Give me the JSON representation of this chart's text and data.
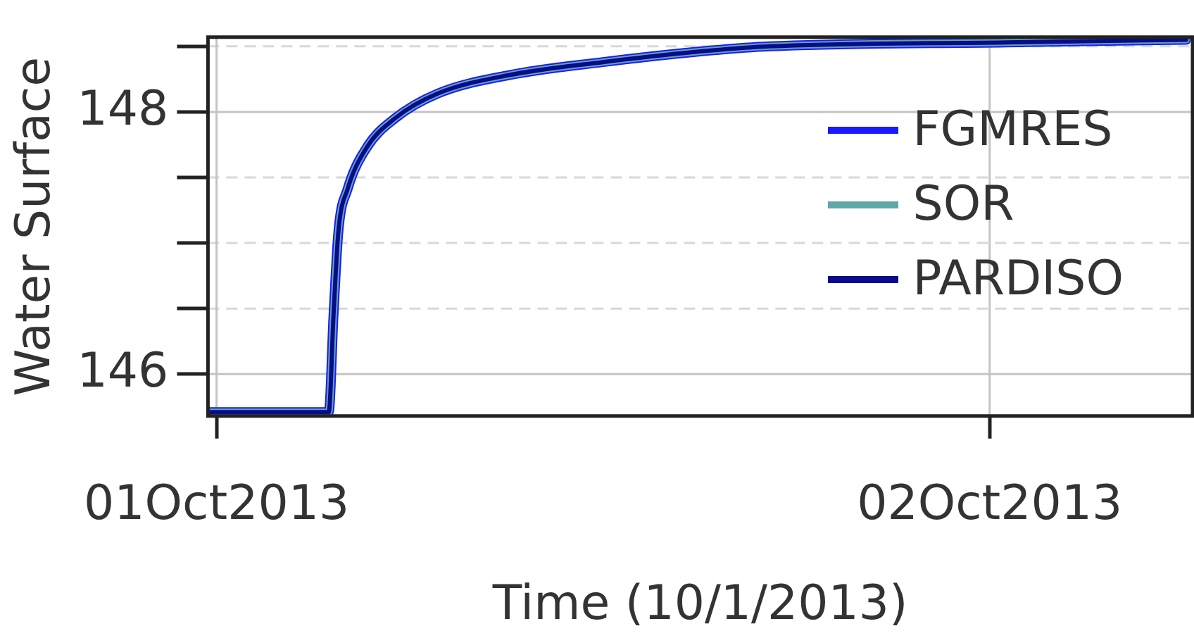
{
  "chart_data": {
    "type": "line",
    "xlabel": "Time (10/1/2013)",
    "ylabel": "Water Surface",
    "x": [
      "2013-09-30T23:48",
      "2013-10-01T03:29",
      "2013-10-01T03:38",
      "2013-10-01T03:47",
      "2013-10-01T04:04",
      "2013-10-01T04:40",
      "2013-10-01T05:32",
      "2013-10-01T06:52",
      "2013-10-01T09:04",
      "2013-10-01T12:00",
      "2013-10-01T14:58",
      "2013-10-01T17:10",
      "2013-10-02T00:30",
      "2013-10-02T06:06"
    ],
    "series": [
      {
        "name": "FGMRES",
        "color": "#1a1aff",
        "values": [
          145.71,
          145.71,
          146.46,
          147.09,
          147.41,
          147.73,
          147.95,
          148.14,
          148.28,
          148.38,
          148.46,
          148.5,
          148.53,
          148.55
        ]
      },
      {
        "name": "SOR",
        "color": "#5fa8a8",
        "values": [
          145.71,
          145.71,
          146.46,
          147.09,
          147.41,
          147.73,
          147.95,
          148.14,
          148.28,
          148.38,
          148.46,
          148.5,
          148.53,
          148.55
        ]
      },
      {
        "name": "PARDISO",
        "color": "#0a0a8c",
        "values": [
          145.71,
          145.71,
          146.46,
          147.09,
          147.41,
          147.73,
          147.95,
          148.14,
          148.28,
          148.38,
          148.46,
          148.5,
          148.53,
          148.55
        ]
      }
    ],
    "xlim": [
      "2013-09-30T23:44",
      "2013-10-02T06:18"
    ],
    "xticks": [
      {
        "value": "2013-10-01",
        "label": "01Oct2013"
      },
      {
        "value": "2013-10-02",
        "label": "02Oct2013"
      }
    ],
    "ylim": [
      145.68,
      148.57
    ],
    "yticks": [
      146,
      {
        "value": 146.5,
        "label": null
      },
      {
        "value": 147,
        "label": null
      },
      {
        "value": 147.5,
        "label": null
      },
      148,
      {
        "value": 148.5,
        "label": null
      }
    ],
    "grid": true,
    "legend": "right",
    "marker": "none",
    "line_style": "solid"
  }
}
